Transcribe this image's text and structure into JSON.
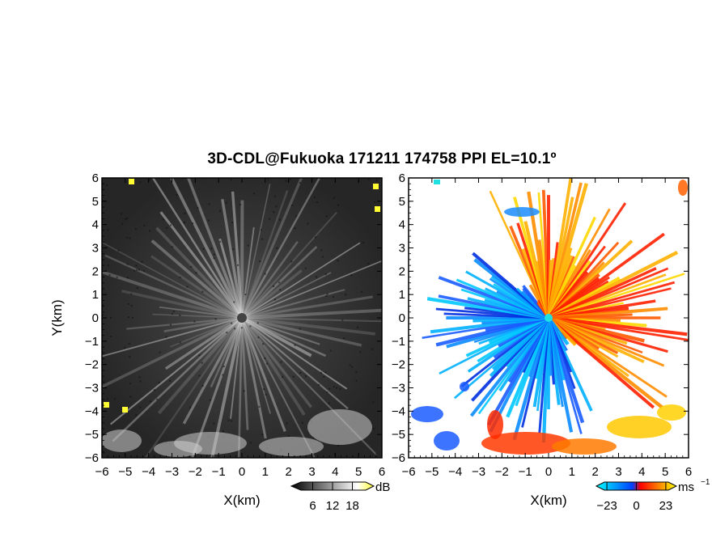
{
  "chart_data": [
    {
      "type": "heatmap",
      "panel": "left",
      "title": "3D-CDL@Fukuoka 171211 174758 PPI EL=10.1º",
      "xlabel": "X(km)",
      "ylabel": "Y(km)",
      "xlim": [
        -6,
        6
      ],
      "ylim": [
        -6,
        6
      ],
      "xticks": [
        "−6",
        "−5",
        "−4",
        "−3",
        "−2",
        "−1",
        "0",
        "1",
        "2",
        "3",
        "4",
        "5",
        "6"
      ],
      "yticks": [
        "6",
        "5",
        "4",
        "3",
        "2",
        "1",
        "0",
        "−1",
        "−2",
        "−3",
        "−4",
        "−5",
        "−6"
      ],
      "colorbar": {
        "unit": "dB",
        "ticks": [
          "6",
          "12",
          "18"
        ],
        "values": [
          6,
          12,
          18
        ],
        "range": [
          0,
          24
        ],
        "colors": [
          "#000000",
          "#ffffff",
          "#ffff33"
        ]
      }
    },
    {
      "type": "heatmap",
      "panel": "right",
      "xlabel": "X(km)",
      "xlim": [
        -6,
        6
      ],
      "ylim": [
        -6,
        6
      ],
      "xticks": [
        "−6",
        "−5",
        "−4",
        "−3",
        "−2",
        "−1",
        "0",
        "1",
        "2",
        "3",
        "4",
        "5",
        "6"
      ],
      "yticks": [
        "6",
        "5",
        "4",
        "3",
        "2",
        "1",
        "0",
        "−1",
        "−2",
        "−3",
        "−4",
        "−5",
        "−6"
      ],
      "colorbar": {
        "unit": "ms",
        "unit_sup": "−1",
        "ticks": [
          "−23",
          "0",
          "23"
        ],
        "values": [
          -23,
          0,
          23
        ],
        "range": [
          -30,
          30
        ],
        "colors": [
          "#00ffff",
          "#0040ff",
          "#ff0000",
          "#ffff00"
        ]
      }
    }
  ],
  "colors": {
    "neg_velocity": "#1a5cff",
    "pos_velocity": "#ff5a00",
    "echo_bg": "#2e2e2e",
    "hot": "#ffff33"
  }
}
